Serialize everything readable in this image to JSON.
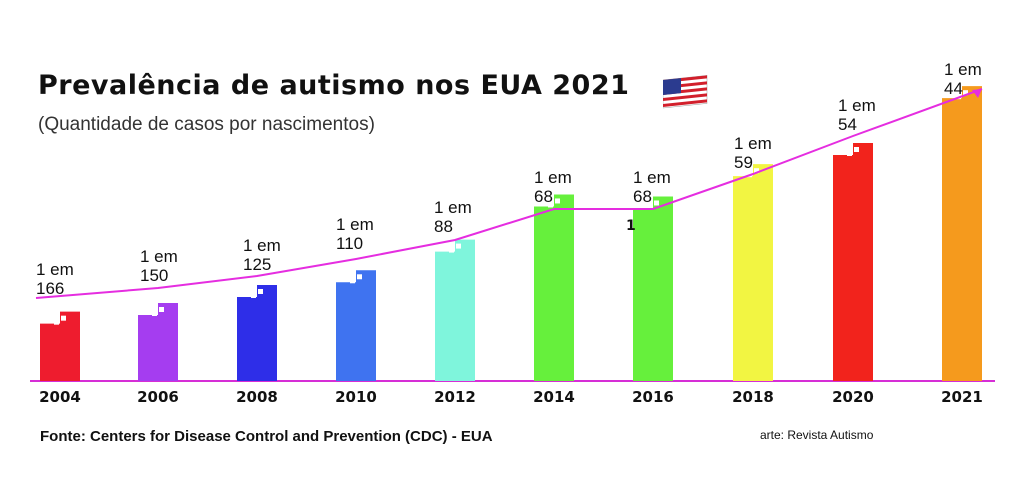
{
  "header": {
    "title": "Prevalência de autismo nos EUA 2021",
    "subtitle": "(Quantidade de casos por nascimentos)"
  },
  "flag_icon": "usa-flag-icon",
  "chart_data": {
    "type": "bar",
    "categories": [
      "2004",
      "2006",
      "2008",
      "2010",
      "2012",
      "2014",
      "2016",
      "2018",
      "2020",
      "2021"
    ],
    "prevalence_1_in": [
      166,
      150,
      125,
      110,
      88,
      68,
      68,
      59,
      54,
      44
    ],
    "labels": [
      [
        "1 em",
        "166"
      ],
      [
        "1 em",
        "150"
      ],
      [
        "1 em",
        "125"
      ],
      [
        "1 em",
        "110"
      ],
      [
        "1 em",
        "88"
      ],
      [
        "1 em",
        "68"
      ],
      [
        "1 em",
        "68"
      ],
      [
        "1 em",
        "59"
      ],
      [
        "1 em",
        "54"
      ],
      [
        "1 em",
        "44"
      ]
    ],
    "annotation": "1",
    "colors": [
      "#ee1c2e",
      "#a53df0",
      "#2e2ee8",
      "#3f73f0",
      "#7ff5dc",
      "#66f03c",
      "#66f03c",
      "#f2f542",
      "#f2231c",
      "#f59a1d"
    ],
    "trend_color": "#e52de0",
    "axis_color": "#d62ed6",
    "legend": "none",
    "grid": false
  },
  "footer": {
    "source": "Fonte: Centers for Disease Control and Prevention (CDC) - EUA",
    "credit": "arte: Revista Autismo"
  }
}
